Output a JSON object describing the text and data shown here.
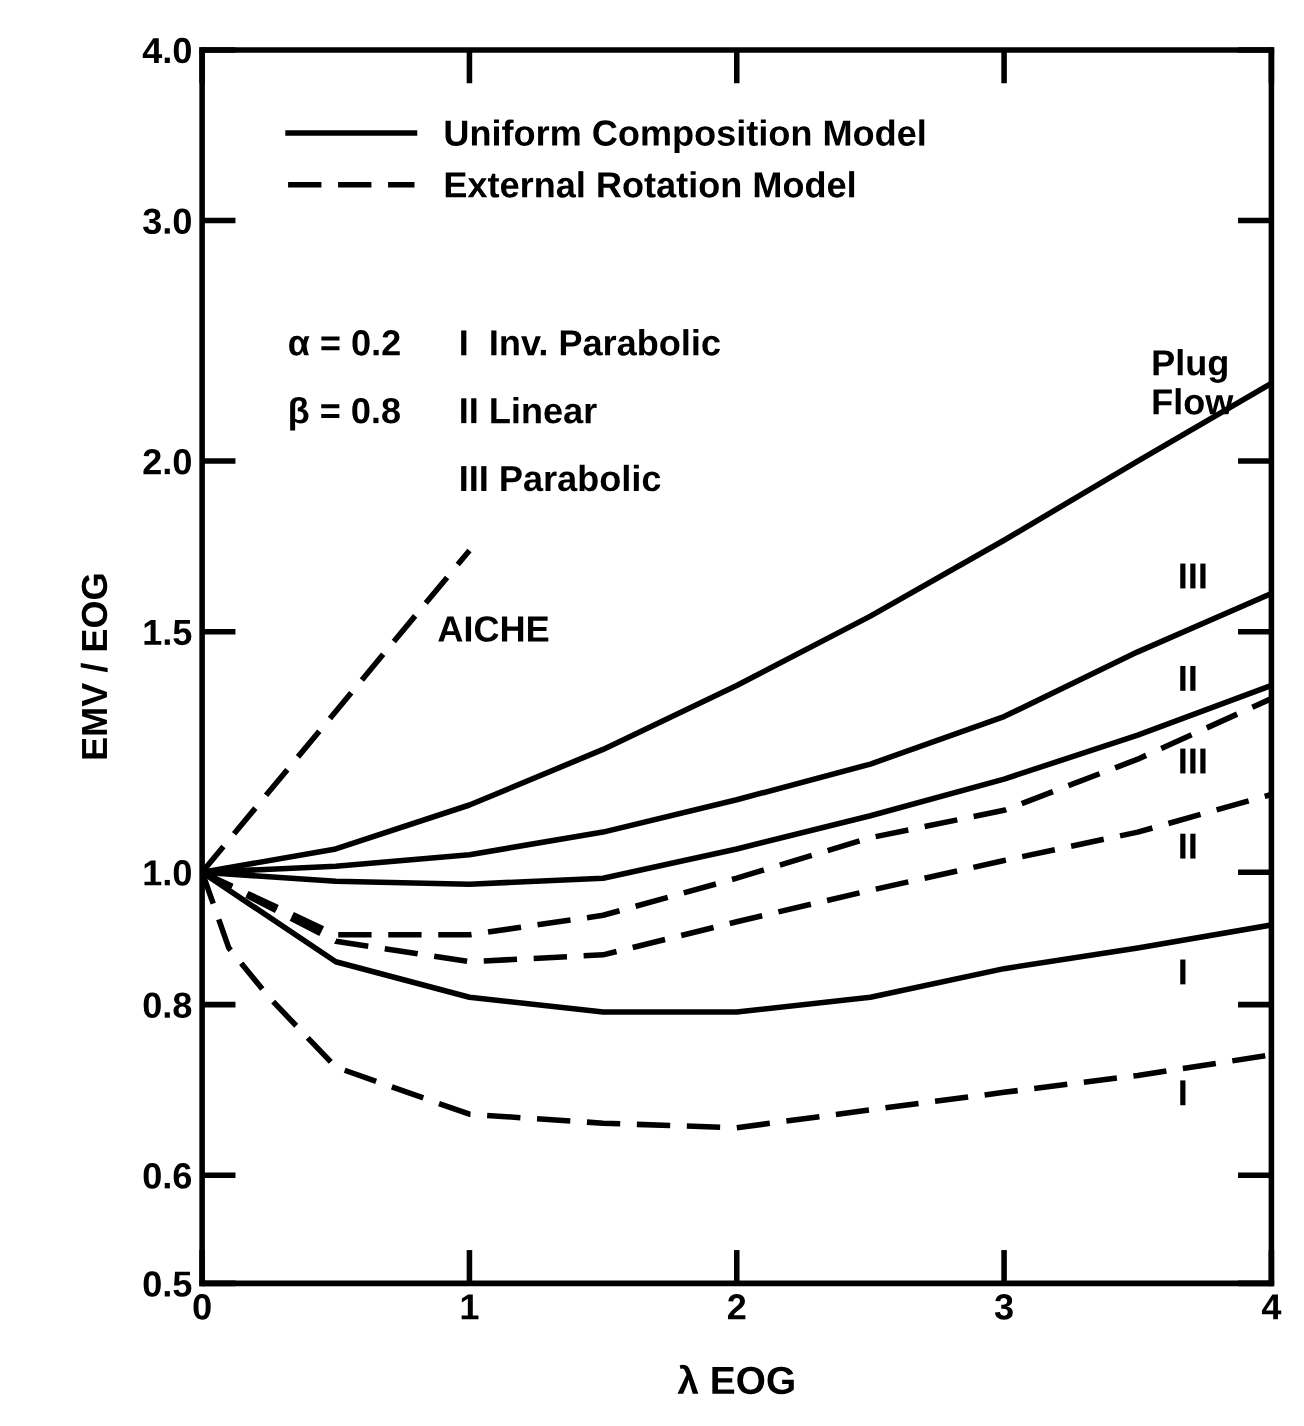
{
  "chart_data": {
    "type": "line",
    "xlabel": "λ EOG",
    "ylabel": "EMV / EOG",
    "log": "y",
    "xlim": [
      0,
      4
    ],
    "ylim": [
      0.5,
      4.0
    ],
    "xticks": [
      0,
      1,
      2,
      3,
      4
    ],
    "yticks": [
      {
        "value": 0.5,
        "label": "0.5"
      },
      {
        "value": 0.6,
        "label": "0.6"
      },
      {
        "value": 0.8,
        "label": "0.8"
      },
      {
        "value": 1.0,
        "label": "1.0"
      },
      {
        "value": 1.5,
        "label": "1.5"
      },
      {
        "value": 2.0,
        "label": "2.0"
      },
      {
        "value": 3.0,
        "label": "3.0"
      },
      {
        "value": 4.0,
        "label": "4.0"
      }
    ],
    "grid": false,
    "legend": "top left",
    "marker": "none",
    "x": [
      0,
      0.5,
      1,
      1.5,
      2,
      2.5,
      3,
      3.5,
      4
    ],
    "series": [
      {
        "name": "Uniform Composition Model",
        "color": "#000000",
        "line_style": "solid",
        "values": [
          1.0,
          1.01,
          1.03,
          1.07,
          1.13,
          1.2,
          1.3,
          1.45,
          1.6
        ]
      },
      {
        "name": "External Rotation Model",
        "color": "#000000",
        "line_style": "dashed",
        "values": [
          1.0,
          0.9,
          0.9,
          0.93,
          0.99,
          1.06,
          1.11,
          1.21,
          1.34
        ]
      },
      {
        "color": "#000000",
        "line_style": "solid",
        "values": [
          1.0,
          1.04,
          1.12,
          1.23,
          1.37,
          1.54,
          1.75,
          2.0,
          2.28
        ]
      },
      {
        "color": "#000000",
        "line_style": "solid",
        "values": [
          1.0,
          0.985,
          0.98,
          0.99,
          1.04,
          1.1,
          1.17,
          1.26,
          1.37
        ]
      },
      {
        "color": "#000000",
        "line_style": "solid",
        "values": [
          1.0,
          0.86,
          0.81,
          0.79,
          0.79,
          0.81,
          0.85,
          0.88,
          0.915
        ]
      },
      {
        "color": "#000000",
        "line_style": "dashed",
        "values": [
          1.0,
          0.89,
          0.86,
          0.87,
          0.92,
          0.97,
          1.02,
          1.07,
          1.14
        ]
      },
      {
        "color": "#000000",
        "line_style": "dashed",
        "x": [
          0,
          0.1,
          0.25,
          0.5,
          1,
          1.5,
          2,
          2.5,
          3,
          3.5,
          4
        ],
        "values": [
          1.0,
          0.88,
          0.81,
          0.72,
          0.665,
          0.655,
          0.65,
          0.67,
          0.69,
          0.71,
          0.735
        ]
      },
      {
        "color": "#000000",
        "line_style": "dashed",
        "x": [
          0,
          1
        ],
        "values": [
          1.0,
          1.72
        ]
      }
    ],
    "annotations": [
      "α = 0.2",
      "β = 0.8",
      "I  Inv. Parabolic",
      "II Linear",
      "III Parabolic",
      "AICHE",
      "Plug\nFlow",
      "III",
      "II",
      "III",
      "II",
      "I",
      "I"
    ]
  }
}
